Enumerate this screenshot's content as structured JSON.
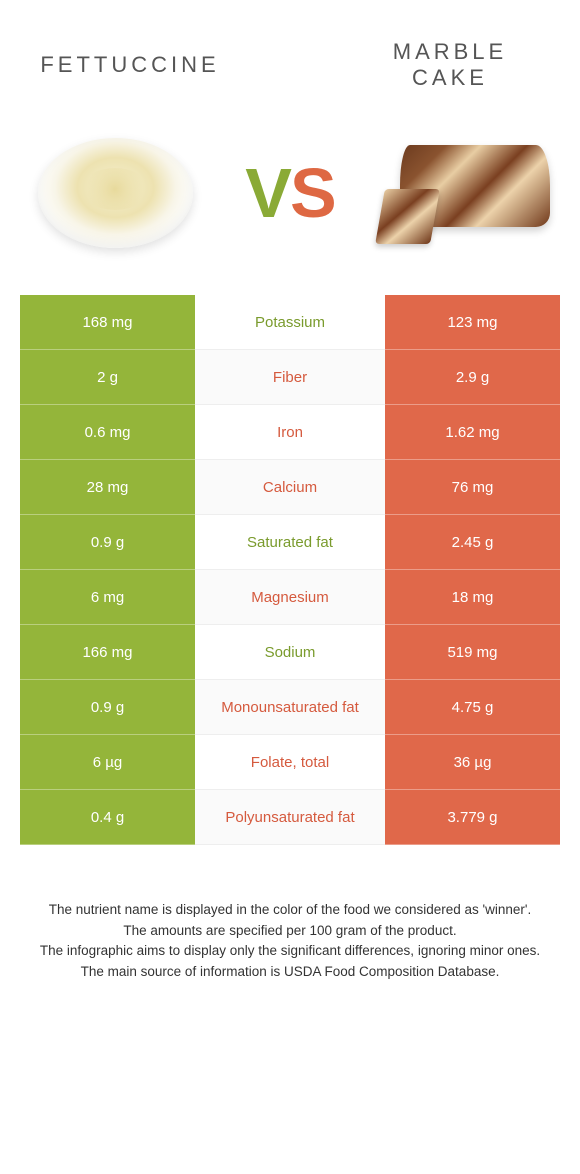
{
  "colors": {
    "left_bg": "#94b53a",
    "right_bg": "#e0684a",
    "left_text": "#7a9b2d",
    "right_text": "#d55a3e"
  },
  "header": {
    "left_title": "FETTUCCINE",
    "right_title": "MARBLE CAKE",
    "vs_v": "V",
    "vs_s": "S"
  },
  "rows": [
    {
      "left": "168 mg",
      "label": "Potassium",
      "right": "123 mg",
      "winner": "left"
    },
    {
      "left": "2 g",
      "label": "Fiber",
      "right": "2.9 g",
      "winner": "right"
    },
    {
      "left": "0.6 mg",
      "label": "Iron",
      "right": "1.62 mg",
      "winner": "right"
    },
    {
      "left": "28 mg",
      "label": "Calcium",
      "right": "76 mg",
      "winner": "right"
    },
    {
      "left": "0.9 g",
      "label": "Saturated fat",
      "right": "2.45 g",
      "winner": "left"
    },
    {
      "left": "6 mg",
      "label": "Magnesium",
      "right": "18 mg",
      "winner": "right"
    },
    {
      "left": "166 mg",
      "label": "Sodium",
      "right": "519 mg",
      "winner": "left"
    },
    {
      "left": "0.9 g",
      "label": "Monounsaturated fat",
      "right": "4.75 g",
      "winner": "right"
    },
    {
      "left": "6 µg",
      "label": "Folate, total",
      "right": "36 µg",
      "winner": "right"
    },
    {
      "left": "0.4 g",
      "label": "Polyunsaturated fat",
      "right": "3.779 g",
      "winner": "right"
    }
  ],
  "footer": {
    "l1": "The nutrient name is displayed in the color of the food we considered as 'winner'.",
    "l2": "The amounts are specified per 100 gram of the product.",
    "l3": "The infographic aims to display only the significant differences, ignoring minor ones.",
    "l4": "The main source of information is USDA Food Composition Database."
  }
}
